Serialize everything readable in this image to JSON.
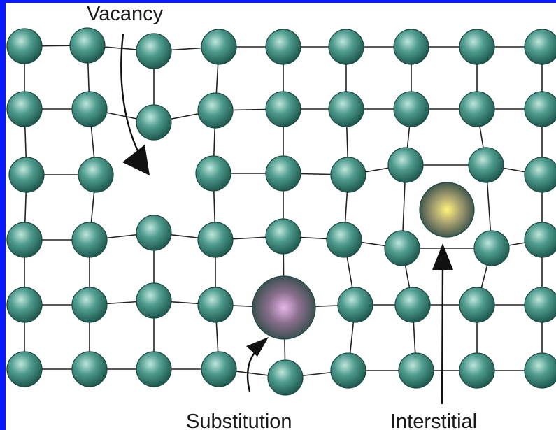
{
  "labels": {
    "vacancy": "Vacancy",
    "substitution": "Substitution",
    "interstitial": "Interstitial"
  },
  "colors": {
    "background_border": "#0a1aff",
    "host_atom": "#3f8f80",
    "host_atom_highlight": "#bfe6dc",
    "substitution_atom": "#c58fc8",
    "interstitial_atom": "#f2ea70",
    "bond": "#222222"
  }
}
